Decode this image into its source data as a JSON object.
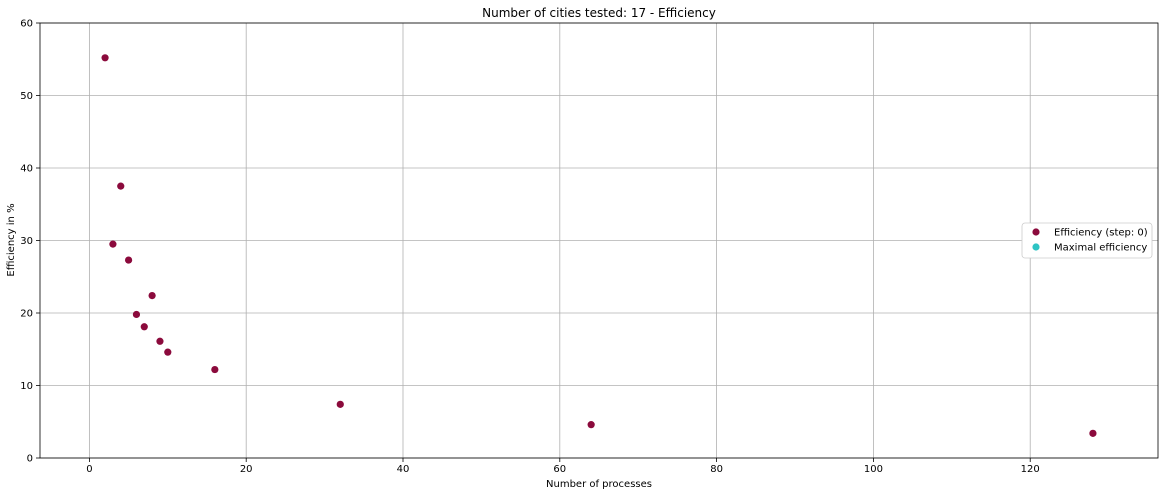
{
  "chart_data": {
    "type": "scatter",
    "title": "Number of cities tested: 17 - Efficiency",
    "xlabel": "Number of processes",
    "ylabel": "Efficiency in %",
    "xlim": [
      -6.3,
      136.3
    ],
    "ylim": [
      0,
      60
    ],
    "xticks": [
      0,
      20,
      40,
      60,
      80,
      100,
      120
    ],
    "yticks": [
      0,
      10,
      20,
      30,
      40,
      50,
      60
    ],
    "grid": true,
    "legend_position": "center-right",
    "series": [
      {
        "name": "Efficiency (step: 0)",
        "color": "#8b0a3c",
        "points": [
          {
            "x": 2,
            "y": 55.2
          },
          {
            "x": 3,
            "y": 29.5
          },
          {
            "x": 4,
            "y": 37.5
          },
          {
            "x": 5,
            "y": 27.3
          },
          {
            "x": 6,
            "y": 19.8
          },
          {
            "x": 7,
            "y": 18.1
          },
          {
            "x": 8,
            "y": 22.4
          },
          {
            "x": 9,
            "y": 16.1
          },
          {
            "x": 10,
            "y": 14.6
          },
          {
            "x": 16,
            "y": 12.2
          },
          {
            "x": 32,
            "y": 7.4
          },
          {
            "x": 64,
            "y": 4.6
          },
          {
            "x": 128,
            "y": 3.4
          }
        ]
      },
      {
        "name": "Maximal efficiency",
        "color": "#2ec4c4",
        "points": []
      }
    ]
  }
}
